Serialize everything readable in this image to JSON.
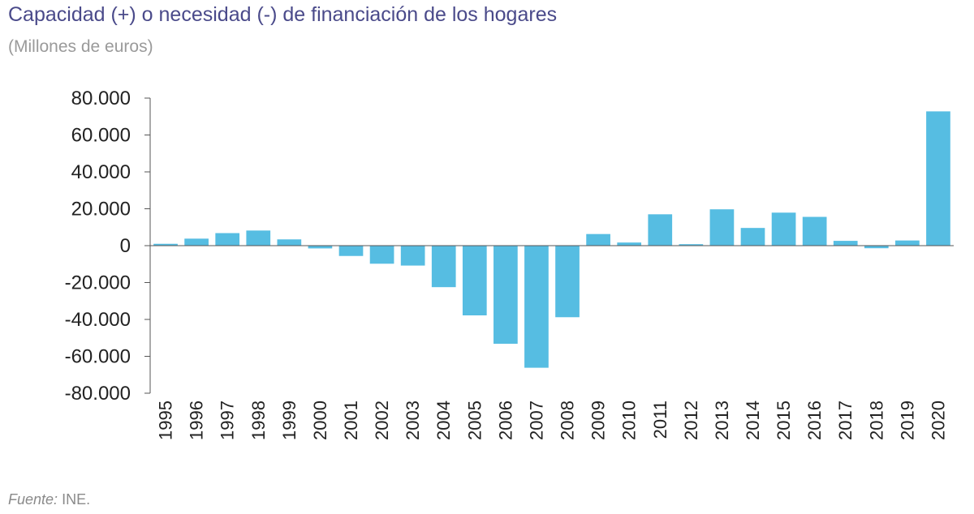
{
  "chart_data": {
    "type": "bar",
    "title": "Capacidad (+) o necesidad (-) de financiación de los hogares",
    "subtitle": "(Millones de euros)",
    "xlabel": "",
    "ylabel": "",
    "ylim": [
      -80000,
      80000
    ],
    "yticks": [
      80000,
      60000,
      40000,
      20000,
      0,
      -20000,
      -40000,
      -60000,
      -80000
    ],
    "ytick_labels": [
      "80.000",
      "60.000",
      "40.000",
      "20.000",
      "0",
      "-20.000",
      "-40.000",
      "-60.000",
      "-80.000"
    ],
    "categories": [
      "1995",
      "1996",
      "1997",
      "1998",
      "1999",
      "2000",
      "2001",
      "2002",
      "2003",
      "2004",
      "2005",
      "2006",
      "2007",
      "2008",
      "2009",
      "2010",
      "2011",
      "2012",
      "2013",
      "2014",
      "2015",
      "2016",
      "2017",
      "2018",
      "2019",
      "2020"
    ],
    "values": [
      1000,
      3800,
      6800,
      8200,
      3400,
      -1500,
      -5600,
      -9800,
      -10800,
      -22500,
      -37800,
      -53200,
      -66200,
      -38800,
      6300,
      1700,
      17000,
      800,
      19700,
      9600,
      17900,
      15600,
      2600,
      -1400,
      2800,
      72800
    ],
    "bar_color": "#56bde2",
    "grid": false
  },
  "source": {
    "prefix": "Fuente:",
    "text": "INE."
  }
}
